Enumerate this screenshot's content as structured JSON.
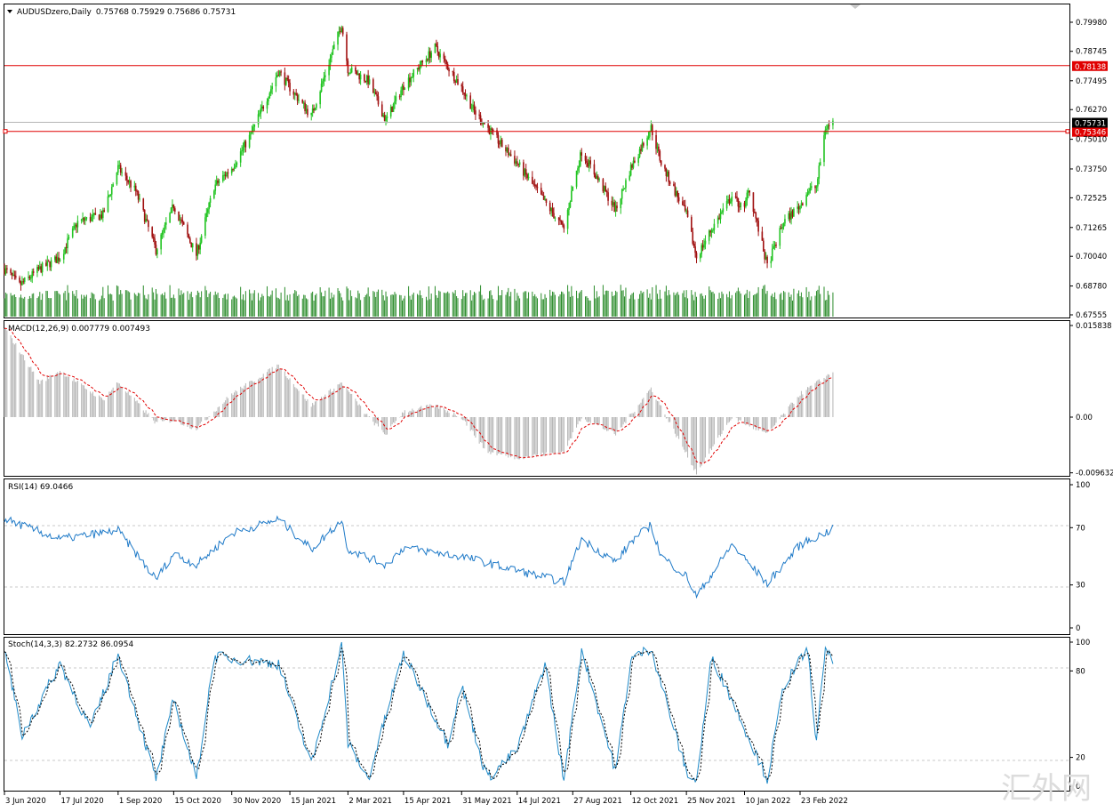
{
  "main_panel": {
    "title": "AUDUSDzero,Daily",
    "ohlc": "0.75768 0.75929 0.75686 0.75731",
    "price_ticks": [
      "0.79980",
      "0.78745",
      "0.77495",
      "0.76270",
      "0.75010",
      "0.73750",
      "0.72525",
      "0.71265",
      "0.70040",
      "0.68780",
      "0.67555"
    ],
    "levels": [
      {
        "value": "0.78138",
        "color": "#e00000"
      },
      {
        "value": "0.75346",
        "color": "#e00000"
      }
    ],
    "current_price": "0.75731"
  },
  "macd_panel": {
    "label": "MACD(12,26,9) 0.007779 0.007493",
    "ticks": [
      "0.015838",
      "0.00",
      "-0.009632"
    ]
  },
  "rsi_panel": {
    "label": "RSI(14) 69.0466",
    "ticks": [
      "100",
      "70",
      "30",
      "0"
    ]
  },
  "stoch_panel": {
    "label": "Stoch(14,3,3) 82.2732 86.0954",
    "ticks": [
      "100",
      "80",
      "20",
      "0"
    ]
  },
  "x_axis": {
    "labels": [
      "3 Jun 2020",
      "17 Jul 2020",
      "1 Sep 2020",
      "15 Oct 2020",
      "30 Nov 2020",
      "15 Jan 2021",
      "2 Mar 2021",
      "15 Apr 2021",
      "31 May 2021",
      "14 Jul 2021",
      "27 Aug 2021",
      "12 Oct 2021",
      "25 Nov 2021",
      "10 Jan 2022",
      "23 Feb 2022"
    ]
  },
  "watermark": "汇外网",
  "colors": {
    "bull": "#22c422",
    "bear": "#a01010",
    "volume": "#2a8c2a",
    "macd_hist": "#b4b4b4",
    "macd_signal": "#e00000",
    "rsi": "#1f7ac8",
    "stoch_main": "#1f8ac8",
    "stoch_signal": "#000000",
    "grid_dash": "#c8c8c8"
  },
  "chart_data": {
    "type": "line",
    "title": "AUDUSDzero,Daily",
    "x_start": "3 Jun 2020",
    "x_end": "15 Mar 2022",
    "price_anchors": [
      {
        "date": "3 Jun 2020",
        "value": 0.695
      },
      {
        "date": "15 Jun 2020",
        "value": 0.688
      },
      {
        "date": "1 Jul 2020",
        "value": 0.695
      },
      {
        "date": "17 Jul 2020",
        "value": 0.7
      },
      {
        "date": "31 Jul 2020",
        "value": 0.715
      },
      {
        "date": "20 Aug 2020",
        "value": 0.718
      },
      {
        "date": "1 Sep 2020",
        "value": 0.738
      },
      {
        "date": "15 Sep 2020",
        "value": 0.728
      },
      {
        "date": "1 Oct 2020",
        "value": 0.703
      },
      {
        "date": "15 Oct 2020",
        "value": 0.722
      },
      {
        "date": "2 Nov 2020",
        "value": 0.701
      },
      {
        "date": "16 Nov 2020",
        "value": 0.73
      },
      {
        "date": "30 Nov 2020",
        "value": 0.738
      },
      {
        "date": "15 Dec 2020",
        "value": 0.752
      },
      {
        "date": "6 Jan 2021",
        "value": 0.779
      },
      {
        "date": "15 Jan 2021",
        "value": 0.772
      },
      {
        "date": "1 Feb 2021",
        "value": 0.76
      },
      {
        "date": "25 Feb 2021",
        "value": 0.799
      },
      {
        "date": "2 Mar 2021",
        "value": 0.78
      },
      {
        "date": "18 Mar 2021",
        "value": 0.775
      },
      {
        "date": "1 Apr 2021",
        "value": 0.758
      },
      {
        "date": "15 Apr 2021",
        "value": 0.773
      },
      {
        "date": "10 May 2021",
        "value": 0.789
      },
      {
        "date": "31 May 2021",
        "value": 0.772
      },
      {
        "date": "10 Jun 2021",
        "value": 0.762
      },
      {
        "date": "1 Jul 2021",
        "value": 0.748
      },
      {
        "date": "14 Jul 2021",
        "value": 0.74
      },
      {
        "date": "20 Aug 2021",
        "value": 0.712
      },
      {
        "date": "27 Aug 2021",
        "value": 0.73
      },
      {
        "date": "3 Sep 2021",
        "value": 0.745
      },
      {
        "date": "30 Sep 2021",
        "value": 0.72
      },
      {
        "date": "12 Oct 2021",
        "value": 0.738
      },
      {
        "date": "28 Oct 2021",
        "value": 0.755
      },
      {
        "date": "5 Nov 2021",
        "value": 0.74
      },
      {
        "date": "25 Nov 2021",
        "value": 0.718
      },
      {
        "date": "3 Dec 2021",
        "value": 0.7
      },
      {
        "date": "15 Dec 2021",
        "value": 0.712
      },
      {
        "date": "31 Dec 2021",
        "value": 0.726
      },
      {
        "date": "10 Jan 2022",
        "value": 0.72
      },
      {
        "date": "13 Jan 2022",
        "value": 0.73
      },
      {
        "date": "28 Jan 2022",
        "value": 0.696
      },
      {
        "date": "10 Feb 2022",
        "value": 0.715
      },
      {
        "date": "23 Feb 2022",
        "value": 0.722
      },
      {
        "date": "1 Mar 2022",
        "value": 0.728
      },
      {
        "date": "8 Mar 2022",
        "value": 0.73
      },
      {
        "date": "15 Mar 2022",
        "value": 0.755
      },
      {
        "date": "21 Mar 2022",
        "value": 0.7573
      }
    ],
    "macd_anchors": [
      {
        "date": "3 Jun 2020",
        "value": 0.0155
      },
      {
        "date": "1 Jul 2020",
        "value": 0.006
      },
      {
        "date": "17 Jul 2020",
        "value": 0.008
      },
      {
        "date": "20 Aug 2020",
        "value": 0.003
      },
      {
        "date": "1 Sep 2020",
        "value": 0.006
      },
      {
        "date": "1 Oct 2020",
        "value": -0.001
      },
      {
        "date": "15 Oct 2020",
        "value": -0.0005
      },
      {
        "date": "2 Nov 2020",
        "value": -0.002
      },
      {
        "date": "30 Nov 2020",
        "value": 0.004
      },
      {
        "date": "6 Jan 2021",
        "value": 0.009
      },
      {
        "date": "1 Feb 2021",
        "value": 0.002
      },
      {
        "date": "25 Feb 2021",
        "value": 0.006
      },
      {
        "date": "18 Mar 2021",
        "value": 0.0
      },
      {
        "date": "1 Apr 2021",
        "value": -0.003
      },
      {
        "date": "15 Apr 2021",
        "value": 0.001
      },
      {
        "date": "10 May 2021",
        "value": 0.002
      },
      {
        "date": "31 May 2021",
        "value": 0.0
      },
      {
        "date": "20 Jun 2021",
        "value": -0.006
      },
      {
        "date": "14 Jul 2021",
        "value": -0.007
      },
      {
        "date": "20 Aug 2021",
        "value": -0.006
      },
      {
        "date": "3 Sep 2021",
        "value": 0.0
      },
      {
        "date": "30 Sep 2021",
        "value": -0.003
      },
      {
        "date": "28 Oct 2021",
        "value": 0.005
      },
      {
        "date": "3 Dec 2021",
        "value": -0.0096
      },
      {
        "date": "31 Dec 2021",
        "value": 0.0
      },
      {
        "date": "28 Jan 2022",
        "value": -0.003
      },
      {
        "date": "23 Feb 2022",
        "value": 0.004
      },
      {
        "date": "21 Mar 2022",
        "value": 0.0078
      }
    ],
    "rsi_anchors": [
      {
        "date": "3 Jun 2020",
        "value": 76
      },
      {
        "date": "17 Jul 2020",
        "value": 62
      },
      {
        "date": "1 Sep 2020",
        "value": 68
      },
      {
        "date": "1 Oct 2020",
        "value": 34
      },
      {
        "date": "15 Oct 2020",
        "value": 52
      },
      {
        "date": "2 Nov 2020",
        "value": 44
      },
      {
        "date": "30 Nov 2020",
        "value": 66
      },
      {
        "date": "6 Jan 2021",
        "value": 76
      },
      {
        "date": "1 Feb 2021",
        "value": 55
      },
      {
        "date": "25 Feb 2021",
        "value": 75
      },
      {
        "date": "2 Mar 2021",
        "value": 55
      },
      {
        "date": "1 Apr 2021",
        "value": 44
      },
      {
        "date": "15 Apr 2021",
        "value": 56
      },
      {
        "date": "31 May 2021",
        "value": 50
      },
      {
        "date": "14 Jul 2021",
        "value": 40
      },
      {
        "date": "20 Aug 2021",
        "value": 32
      },
      {
        "date": "3 Sep 2021",
        "value": 62
      },
      {
        "date": "30 Sep 2021",
        "value": 46
      },
      {
        "date": "12 Oct 2021",
        "value": 60
      },
      {
        "date": "28 Oct 2021",
        "value": 72
      },
      {
        "date": "5 Nov 2021",
        "value": 50
      },
      {
        "date": "25 Nov 2021",
        "value": 36
      },
      {
        "date": "3 Dec 2021",
        "value": 22
      },
      {
        "date": "31 Dec 2021",
        "value": 58
      },
      {
        "date": "28 Jan 2022",
        "value": 31
      },
      {
        "date": "23 Feb 2022",
        "value": 58
      },
      {
        "date": "21 Mar 2022",
        "value": 69
      }
    ],
    "stoch_anchors": [
      {
        "date": "3 Jun 2020",
        "value": 95
      },
      {
        "date": "17 Jun 2020",
        "value": 35
      },
      {
        "date": "17 Jul 2020",
        "value": 85
      },
      {
        "date": "10 Aug 2020",
        "value": 40
      },
      {
        "date": "1 Sep 2020",
        "value": 92
      },
      {
        "date": "1 Oct 2020",
        "value": 5
      },
      {
        "date": "15 Oct 2020",
        "value": 60
      },
      {
        "date": "2 Nov 2020",
        "value": 5
      },
      {
        "date": "16 Nov 2020",
        "value": 90
      },
      {
        "date": "6 Jan 2021",
        "value": 85
      },
      {
        "date": "1 Feb 2021",
        "value": 15
      },
      {
        "date": "25 Feb 2021",
        "value": 98
      },
      {
        "date": "2 Mar 2021",
        "value": 30
      },
      {
        "date": "18 Mar 2021",
        "value": 5
      },
      {
        "date": "15 Apr 2021",
        "value": 92
      },
      {
        "date": "20 May 2021",
        "value": 30
      },
      {
        "date": "31 May 2021",
        "value": 70
      },
      {
        "date": "20 Jun 2021",
        "value": 5
      },
      {
        "date": "14 Jul 2021",
        "value": 25
      },
      {
        "date": "5 Aug 2021",
        "value": 85
      },
      {
        "date": "20 Aug 2021",
        "value": 4
      },
      {
        "date": "3 Sep 2021",
        "value": 95
      },
      {
        "date": "30 Sep 2021",
        "value": 10
      },
      {
        "date": "12 Oct 2021",
        "value": 88
      },
      {
        "date": "28 Oct 2021",
        "value": 96
      },
      {
        "date": "25 Nov 2021",
        "value": 10
      },
      {
        "date": "3 Dec 2021",
        "value": 3
      },
      {
        "date": "15 Dec 2021",
        "value": 90
      },
      {
        "date": "31 Dec 2021",
        "value": 60
      },
      {
        "date": "28 Jan 2022",
        "value": 5
      },
      {
        "date": "10 Feb 2022",
        "value": 70
      },
      {
        "date": "1 Mar 2022",
        "value": 95
      },
      {
        "date": "8 Mar 2022",
        "value": 30
      },
      {
        "date": "15 Mar 2022",
        "value": 98
      },
      {
        "date": "21 Mar 2022",
        "value": 84
      }
    ]
  }
}
